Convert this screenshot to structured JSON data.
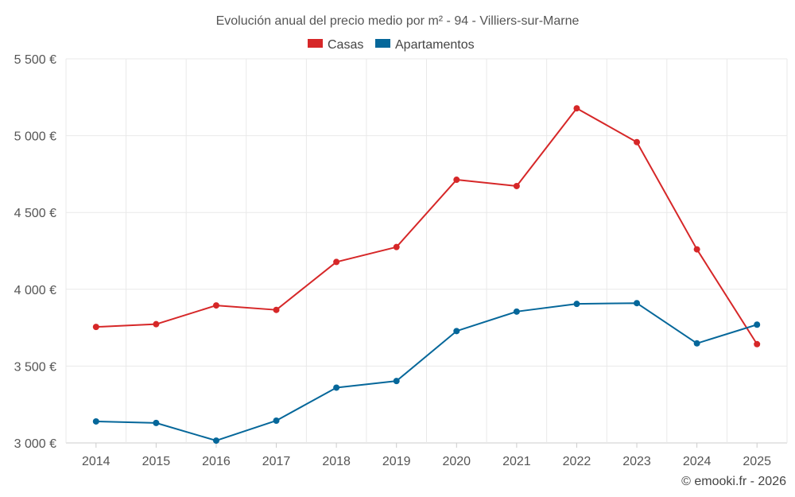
{
  "chart_data": {
    "type": "line",
    "title": "Evolución anual del precio medio por m² - 94 - Villiers-sur-Marne",
    "categories": [
      "2014",
      "2015",
      "2016",
      "2017",
      "2018",
      "2019",
      "2020",
      "2021",
      "2022",
      "2023",
      "2024",
      "2025"
    ],
    "series": [
      {
        "name": "Casas",
        "color": "#d62728",
        "values": [
          3755,
          3773,
          3895,
          3866,
          4178,
          4275,
          4713,
          4672,
          5178,
          4958,
          4260,
          3643
        ]
      },
      {
        "name": "Apartamentos",
        "color": "#05679a",
        "values": [
          3140,
          3130,
          3015,
          3145,
          3360,
          3403,
          3728,
          3855,
          3905,
          3910,
          3648,
          3770
        ]
      }
    ],
    "ylim": [
      3000,
      5500
    ],
    "yticks": [
      3000,
      3500,
      4000,
      4500,
      5000,
      5500
    ],
    "ytick_labels": [
      "3 000 €",
      "3 500 €",
      "4 000 €",
      "4 500 €",
      "5 000 €",
      "5 500 €"
    ],
    "xlabel": "",
    "ylabel": "",
    "grid": true,
    "legend_position": "top-center"
  },
  "credit": "© emooki.fr - 2026"
}
